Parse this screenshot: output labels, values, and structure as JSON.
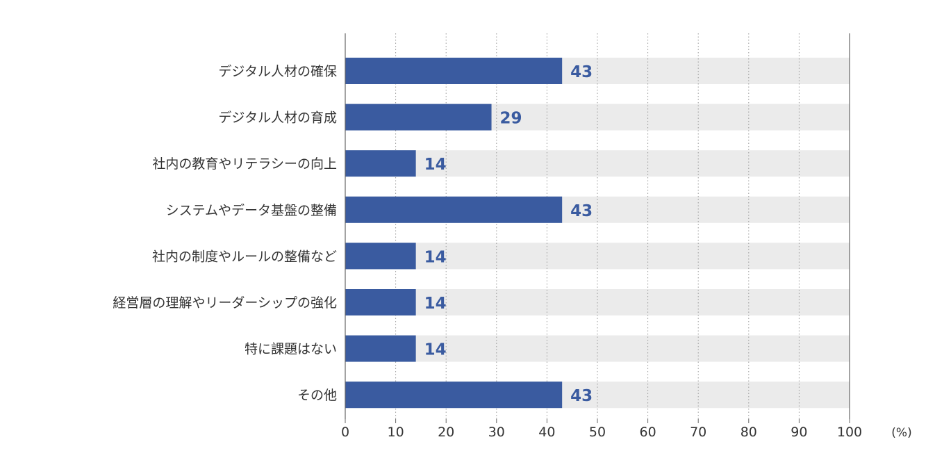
{
  "chart_data": {
    "type": "bar",
    "orientation": "horizontal",
    "categories": [
      "デジタル人材の確保",
      "デジタル人材の育成",
      "社内の教育やリテラシーの向上",
      "システムやデータ基盤の整備",
      "社内の制度やルールの整備など",
      "経営層の理解やリーダーシップの強化",
      "特に課題はない",
      "その他"
    ],
    "values": [
      43,
      29,
      14,
      43,
      14,
      14,
      14,
      43
    ],
    "value_labels": [
      "43",
      "29",
      "14",
      "43",
      "14",
      "14",
      "14",
      "43"
    ],
    "xlim": [
      0,
      100
    ],
    "xticks": [
      "0",
      "10",
      "20",
      "30",
      "40",
      "50",
      "60",
      "70",
      "80",
      "90",
      "100"
    ],
    "xlabel": "(%)",
    "ylabel": "",
    "title": "",
    "grid": "vertical dotted",
    "colors": {
      "bar": "#3a5ba0",
      "track": "#ebebeb",
      "value_text": "#3a5ba0",
      "grid": "#999999",
      "axis": "#666666",
      "text": "#333333"
    }
  }
}
